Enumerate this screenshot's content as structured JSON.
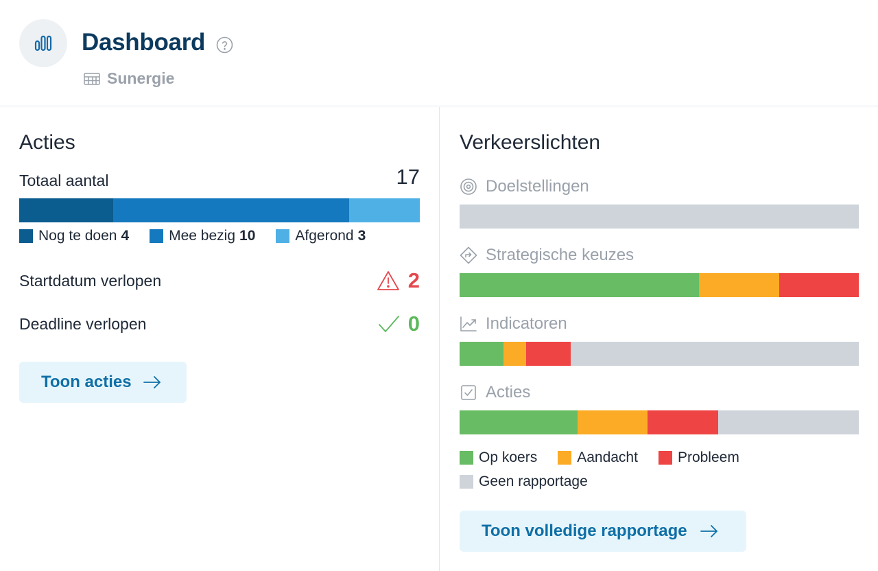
{
  "header": {
    "title": "Dashboard",
    "subtitle": "Sunergie",
    "icons": {
      "logo": "bar-chart-icon",
      "help": "question-circle-icon",
      "org": "table-icon"
    }
  },
  "acties": {
    "title": "Acties",
    "total_label": "Totaal aantal",
    "total_value": "17",
    "segments": [
      {
        "label": "Nog te doen",
        "count": "4",
        "value": 4,
        "color": "#0b5c8f"
      },
      {
        "label": "Mee bezig",
        "count": "10",
        "value": 10,
        "color": "#1479bf"
      },
      {
        "label": "Afgerond",
        "count": "3",
        "value": 3,
        "color": "#4fb0e6"
      }
    ],
    "start_overdue": {
      "label": "Startdatum verlopen",
      "value": "2",
      "icon": "warning-icon",
      "color": "#e5484d"
    },
    "deadline_overdue": {
      "label": "Deadline verlopen",
      "value": "0",
      "icon": "check-icon",
      "color": "#5cb85c"
    },
    "button_label": "Toon acties"
  },
  "traffic": {
    "title": "Verkeerslichten",
    "colors": {
      "op_koers": "#68bc64",
      "aandacht": "#fbab25",
      "probleem": "#ef4444",
      "geen": "#cfd4db"
    },
    "rows": [
      {
        "label": "Doelstellingen",
        "icon": "target-icon",
        "op_koers": 0,
        "aandacht": 0,
        "probleem": 0
      },
      {
        "label": "Strategische keuzes",
        "icon": "signpost-icon",
        "op_koers": 0.6,
        "aandacht": 0.2,
        "probleem": 0.2
      },
      {
        "label": "Indicatoren",
        "icon": "trend-icon",
        "op_koers": 0.11,
        "aandacht": 0.057,
        "probleem": 0.111
      },
      {
        "label": "Acties",
        "icon": "checkbox-icon",
        "op_koers": 0.295,
        "aandacht": 0.176,
        "probleem": 0.176
      }
    ],
    "legend": {
      "op_koers": "Op koers",
      "aandacht": "Aandacht",
      "probleem": "Probleem",
      "geen": "Geen rapportage"
    },
    "button_label": "Toon volledige rapportage"
  }
}
